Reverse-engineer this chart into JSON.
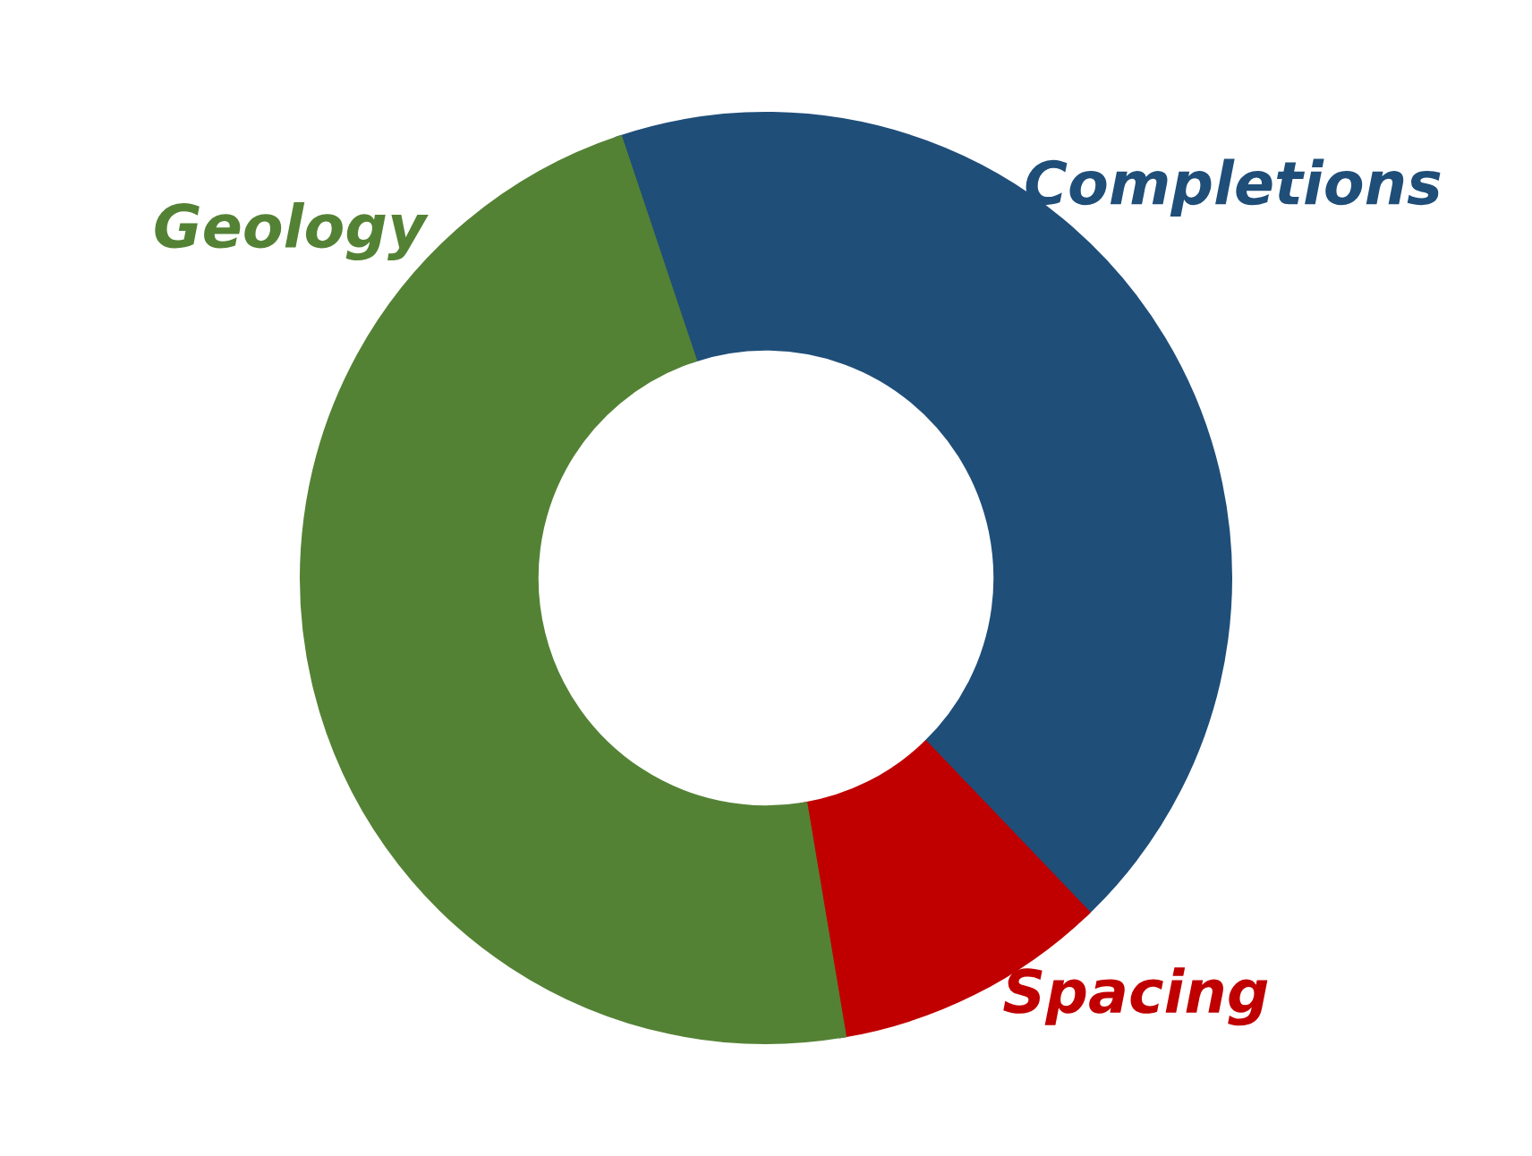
{
  "chart_data": {
    "type": "donut",
    "categories": [
      "Completions",
      "Spacing",
      "Geology"
    ],
    "values": [
      43,
      9.5,
      47.5
    ],
    "colors": [
      "#1f4e79",
      "#c00000",
      "#548235"
    ],
    "legend": false
  }
}
